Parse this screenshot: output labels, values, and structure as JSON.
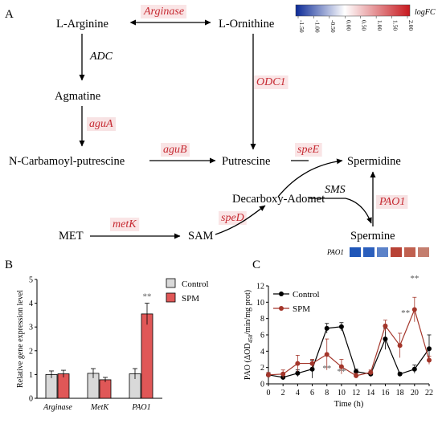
{
  "panels": {
    "A": "A",
    "B": "B",
    "C": "C"
  },
  "pathway": {
    "nodes": {
      "arginine": "L-Arginine",
      "ornithine": "L-Ornithine",
      "agmatine": "Agmatine",
      "carbamoyl": "N-Carbamoyl-putrescine",
      "putrescine": "Putrescine",
      "spermidine": "Spermidine",
      "decarboxy": "Decarboxy-Adomet",
      "met": "MET",
      "sam": "SAM",
      "spermine": "Spermine"
    },
    "enzymes": {
      "arginase": "Arginase",
      "adc": "ADC",
      "odc1": "ODC1",
      "agua": "aguA",
      "agub": "aguB",
      "spee": "speE",
      "sms": "SMS",
      "pao1": "PAO1",
      "metk": "metK",
      "sped": "speD"
    },
    "heat_colors": {
      "arginase": "#d9383d",
      "adc": "none",
      "odc1": "#d9383d",
      "agua": "#c62a32",
      "agub": "#d9383d",
      "spee": "#d9383d",
      "sms": "none",
      "pao1": "#c62a32",
      "metk": "#d9383d",
      "sped": "#d9383d"
    },
    "pao1_strip": {
      "label": "PAO1",
      "colors": [
        "#1f56b8",
        "#2b5fbd",
        "#5b82c9",
        "#b84236",
        "#c0604f",
        "#c47e6f"
      ]
    }
  },
  "legend_scale": {
    "title": "logFC",
    "ticks": [
      "-1.50",
      "-1.00",
      "-0.50",
      "0.00",
      "0.50",
      "1.00",
      "1.50",
      "2.00"
    ],
    "range": [
      -1.5,
      2.0
    ]
  },
  "chart_data": [
    {
      "type": "bar",
      "categories": [
        "Arginase",
        "MetK",
        "PAO1"
      ],
      "series": [
        {
          "name": "Control",
          "color": "#d9d9d9",
          "values": [
            1.0,
            1.05,
            1.03
          ],
          "errors": [
            0.15,
            0.2,
            0.22
          ]
        },
        {
          "name": "SPM",
          "color": "#e05757",
          "values": [
            1.03,
            0.78,
            3.55
          ],
          "errors": [
            0.15,
            0.1,
            0.45
          ]
        }
      ],
      "ylabel": "Relative gene expression level",
      "ylim": [
        0,
        5
      ],
      "yticks": [
        "0",
        "1",
        "2",
        "3",
        "4",
        "5"
      ],
      "annotations": [
        {
          "category": "PAO1",
          "text": "**"
        }
      ]
    },
    {
      "type": "line",
      "x": [
        0,
        2,
        4,
        6,
        8,
        10,
        12,
        14,
        16,
        18,
        20,
        22
      ],
      "xlabel": "Time (h)",
      "ylabel_parts": {
        "pre": "PAO (ΔOD",
        "sub": "450",
        "post": "/min/mg prot)"
      },
      "ylim": [
        0,
        12
      ],
      "yticks": [
        "0",
        "2",
        "4",
        "6",
        "8",
        "10",
        "12"
      ],
      "xticks": [
        "0",
        "2",
        "4",
        "6",
        "8",
        "10",
        "12",
        "14",
        "16",
        "18",
        "20",
        "22"
      ],
      "series": [
        {
          "name": "Control",
          "color": "#000000",
          "values": [
            1.1,
            0.8,
            1.3,
            1.8,
            6.8,
            7.0,
            1.5,
            1.2,
            5.5,
            1.2,
            1.8,
            4.3
          ],
          "errors": [
            0.2,
            0.3,
            0.4,
            1.1,
            0.6,
            0.5,
            0.3,
            0.3,
            1.3,
            0.2,
            0.5,
            1.7
          ]
        },
        {
          "name": "SPM",
          "color": "#a3352a",
          "values": [
            1.1,
            1.2,
            2.5,
            2.5,
            3.6,
            2.1,
            1.0,
            1.4,
            7.1,
            4.7,
            9.1,
            2.9
          ],
          "errors": [
            0.3,
            0.5,
            1.0,
            0.5,
            1.9,
            0.9,
            0.3,
            0.3,
            0.7,
            1.5,
            1.5,
            0.5
          ]
        }
      ],
      "annotations": [
        {
          "x": 8,
          "text": "**"
        },
        {
          "x": 10,
          "text": "**"
        },
        {
          "x": 18,
          "text": "**"
        },
        {
          "x": 20,
          "text": "**"
        }
      ]
    }
  ]
}
